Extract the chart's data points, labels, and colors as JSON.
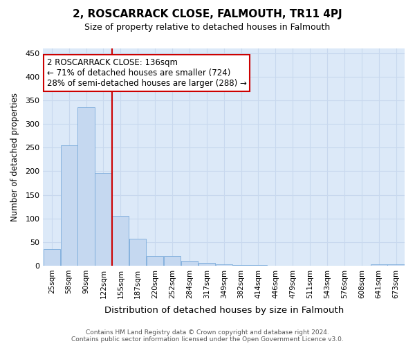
{
  "title": "2, ROSCARRACK CLOSE, FALMOUTH, TR11 4PJ",
  "subtitle": "Size of property relative to detached houses in Falmouth",
  "xlabel": "Distribution of detached houses by size in Falmouth",
  "ylabel": "Number of detached properties",
  "footer1": "Contains HM Land Registry data © Crown copyright and database right 2024.",
  "footer2": "Contains public sector information licensed under the Open Government Licence v3.0.",
  "annotation_line1": "2 ROSCARRACK CLOSE: 136sqm",
  "annotation_line2": "← 71% of detached houses are smaller (724)",
  "annotation_line3": "28% of semi-detached houses are larger (288) →",
  "bin_labels": [
    "25sqm",
    "58sqm",
    "90sqm",
    "122sqm",
    "155sqm",
    "187sqm",
    "220sqm",
    "252sqm",
    "284sqm",
    "317sqm",
    "349sqm",
    "382sqm",
    "414sqm",
    "446sqm",
    "479sqm",
    "511sqm",
    "543sqm",
    "576sqm",
    "608sqm",
    "641sqm",
    "673sqm"
  ],
  "bar_values": [
    35,
    255,
    335,
    196,
    105,
    57,
    20,
    20,
    10,
    5,
    3,
    1,
    1,
    0,
    0,
    0,
    0,
    0,
    0,
    3,
    3
  ],
  "bar_color": "#c5d8f0",
  "bar_edge_color": "#7aabdb",
  "grid_color": "#c8d8ee",
  "bg_color": "#ffffff",
  "axes_bg_color": "#dce9f8",
  "red_line_x": 3.5,
  "red_line_color": "#cc0000",
  "annotation_box_color": "#cc0000",
  "ylim": [
    0,
    460
  ],
  "yticks": [
    0,
    50,
    100,
    150,
    200,
    250,
    300,
    350,
    400,
    450
  ]
}
